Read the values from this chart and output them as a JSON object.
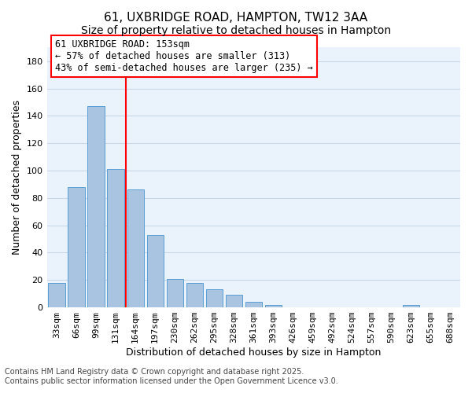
{
  "title_line1": "61, UXBRIDGE ROAD, HAMPTON, TW12 3AA",
  "title_line2": "Size of property relative to detached houses in Hampton",
  "xlabel": "Distribution of detached houses by size in Hampton",
  "ylabel": "Number of detached properties",
  "categories": [
    "33sqm",
    "66sqm",
    "99sqm",
    "131sqm",
    "164sqm",
    "197sqm",
    "230sqm",
    "262sqm",
    "295sqm",
    "328sqm",
    "361sqm",
    "393sqm",
    "426sqm",
    "459sqm",
    "492sqm",
    "524sqm",
    "557sqm",
    "590sqm",
    "623sqm",
    "655sqm",
    "688sqm"
  ],
  "values": [
    18,
    88,
    147,
    101,
    86,
    53,
    21,
    18,
    13,
    9,
    4,
    2,
    0,
    0,
    0,
    0,
    0,
    0,
    2,
    0,
    0
  ],
  "bar_color": "#a8c4e0",
  "bar_edge_color": "#5a9fd4",
  "vline_x": 4,
  "vline_color": "red",
  "annotation_text": "61 UXBRIDGE ROAD: 153sqm\n← 57% of detached houses are smaller (313)\n43% of semi-detached houses are larger (235) →",
  "annotation_box_color": "white",
  "annotation_box_edge": "red",
  "ylim": [
    0,
    190
  ],
  "yticks": [
    0,
    20,
    40,
    60,
    80,
    100,
    120,
    140,
    160,
    180
  ],
  "grid_color": "#c8d8e8",
  "background_color": "#eaf3fb",
  "footer_line1": "Contains HM Land Registry data © Crown copyright and database right 2025.",
  "footer_line2": "Contains public sector information licensed under the Open Government Licence v3.0.",
  "title_fontsize": 11,
  "subtitle_fontsize": 10,
  "axis_label_fontsize": 9,
  "tick_fontsize": 8,
  "annotation_fontsize": 8.5,
  "footer_fontsize": 7
}
